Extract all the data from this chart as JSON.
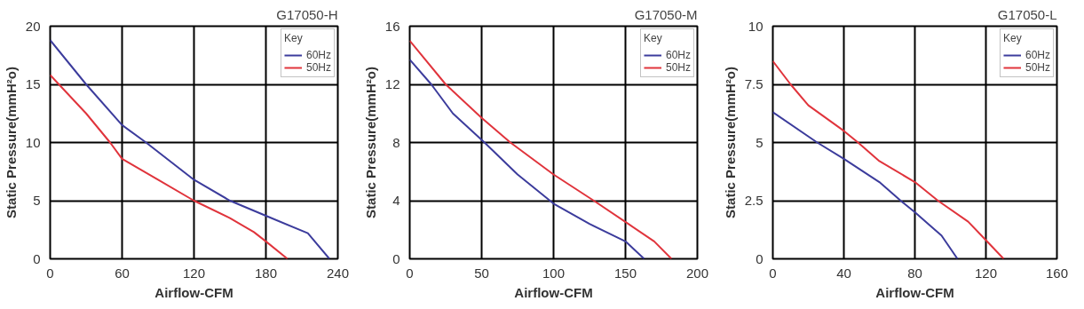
{
  "chart_data": [
    {
      "type": "line",
      "title": "G17050-H",
      "xlabel": "Airflow-CFM",
      "ylabel": "Static Pressure(mmH²o)",
      "legend_title": "Key",
      "legend": "top right",
      "grid": true,
      "line_style": "solid",
      "xlim": [
        0,
        240
      ],
      "xticks": [
        0,
        60,
        120,
        180,
        240
      ],
      "ylim": [
        0,
        20
      ],
      "yticks": [
        0,
        5,
        10,
        15,
        20
      ],
      "series": [
        {
          "name": "60Hz",
          "color": "#3c3c9c",
          "x": [
            0,
            30,
            60,
            80,
            120,
            150,
            180,
            215,
            233
          ],
          "values": [
            18.8,
            15,
            11.5,
            10,
            6.8,
            5,
            3.7,
            2.2,
            0
          ]
        },
        {
          "name": "50Hz",
          "color": "#e0343c",
          "x": [
            0,
            30,
            50,
            60,
            90,
            120,
            150,
            170,
            180,
            198
          ],
          "values": [
            15.8,
            12.5,
            10,
            8.6,
            6.8,
            5,
            3.5,
            2.3,
            1.5,
            0
          ]
        }
      ]
    },
    {
      "type": "line",
      "title": "G17050-M",
      "xlabel": "Airflow-CFM",
      "ylabel": "Static Pressure(mmH²o)",
      "legend_title": "Key",
      "legend": "top right",
      "grid": true,
      "line_style": "solid",
      "xlim": [
        0,
        200
      ],
      "xticks": [
        0,
        50,
        100,
        150,
        200
      ],
      "ylim": [
        0,
        16
      ],
      "yticks": [
        0,
        4,
        8,
        12,
        16
      ],
      "series": [
        {
          "name": "60Hz",
          "color": "#3c3c9c",
          "x": [
            0,
            15,
            30,
            52,
            75,
            100,
            125,
            150,
            163
          ],
          "values": [
            13.7,
            12,
            10,
            8,
            5.8,
            3.8,
            2.4,
            1.2,
            0
          ]
        },
        {
          "name": "50Hz",
          "color": "#e0343c",
          "x": [
            0,
            25,
            50,
            70,
            100,
            128,
            152,
            170,
            182
          ],
          "values": [
            15,
            12,
            9.7,
            8,
            5.8,
            4,
            2.4,
            1.2,
            0
          ]
        }
      ]
    },
    {
      "type": "line",
      "title": "G17050-L",
      "xlabel": "Airflow-CFM",
      "ylabel": "Static Pressure(mmH²o)",
      "legend_title": "Key",
      "legend": "top right",
      "grid": true,
      "line_style": "solid",
      "xlim": [
        0,
        160
      ],
      "xticks": [
        0,
        40,
        80,
        120,
        160
      ],
      "ylim": [
        0,
        10
      ],
      "yticks": [
        0,
        2.5,
        5,
        7.5,
        10
      ],
      "series": [
        {
          "name": "60Hz",
          "color": "#3c3c9c",
          "x": [
            0,
            25,
            40,
            60,
            72,
            80,
            95,
            104
          ],
          "values": [
            6.3,
            5,
            4.3,
            3.3,
            2.5,
            2,
            1,
            0
          ]
        },
        {
          "name": "50Hz",
          "color": "#e0343c",
          "x": [
            0,
            10,
            20,
            40,
            48,
            60,
            80,
            93,
            110,
            120,
            130
          ],
          "values": [
            8.5,
            7.5,
            6.6,
            5.5,
            5,
            4.2,
            3.3,
            2.5,
            1.6,
            0.8,
            0
          ]
        }
      ]
    }
  ]
}
